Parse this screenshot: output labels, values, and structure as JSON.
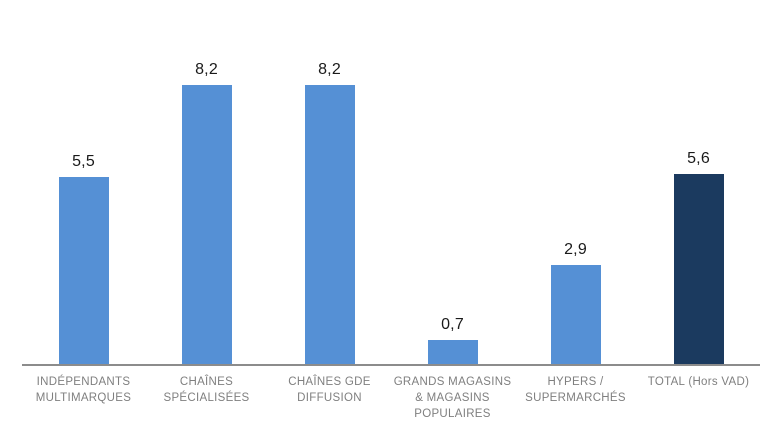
{
  "chart_data": {
    "type": "bar",
    "categories": [
      "INDÉPENDANTS MULTIMARQUES",
      "CHAÎNES SPÉCIALISÉES",
      "CHAÎNES GDE DIFFUSION",
      "GRANDS MAGASINS & MAGASINS POPULAIRES",
      "HYPERS / SUPERMARCHÉS",
      "TOTAL (Hors VAD)"
    ],
    "values": [
      5.5,
      8.2,
      8.2,
      0.7,
      2.9,
      5.6
    ],
    "value_labels": [
      "5,5",
      "8,2",
      "8,2",
      "0,7",
      "2,9",
      "5,6"
    ],
    "title": "",
    "xlabel": "",
    "ylabel": "",
    "ylim": [
      0,
      8.7
    ],
    "grid": false,
    "legend_position": "none",
    "highlight_index": 5,
    "colors": {
      "bar_default": "#5590D5",
      "bar_total": "#1B3A5F",
      "axis_line": "#8C8C8C",
      "category_label": "#7F7F7F",
      "value_label": "#1A1A1A",
      "background": "#FFFFFF"
    }
  }
}
